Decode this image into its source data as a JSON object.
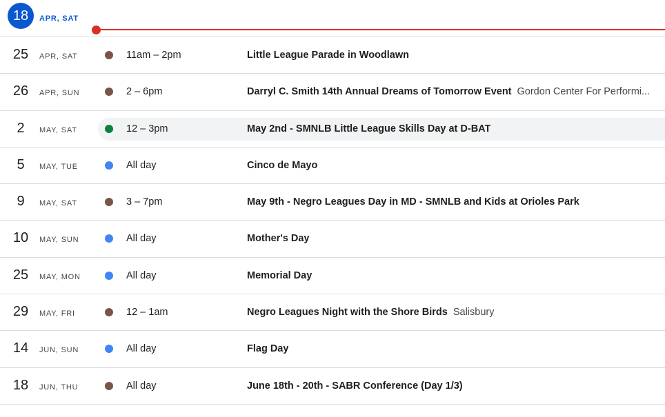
{
  "today": {
    "day": "18",
    "label": "APR, SAT"
  },
  "colors": {
    "brown": "#795548",
    "green": "#0b8043",
    "blue": "#4285f4",
    "today": "#0b57d0",
    "now_line": "#d93025"
  },
  "events": [
    {
      "day": "25",
      "label": "APR, SAT",
      "color": "#795548",
      "time": "11am – 2pm",
      "title": "Little League Parade in Woodlawn",
      "location": ""
    },
    {
      "day": "26",
      "label": "APR, SUN",
      "color": "#795548",
      "time": "2 – 6pm",
      "title": "Darryl C. Smith 14th Annual Dreams of Tomorrow Event",
      "location": "Gordon Center For Performi..."
    },
    {
      "day": "2",
      "label": "MAY, SAT",
      "color": "#0b8043",
      "time": "12 – 3pm",
      "title": "May 2nd - SMNLB Little League Skills Day at D-BAT",
      "location": "",
      "hover": true
    },
    {
      "day": "5",
      "label": "MAY, TUE",
      "color": "#4285f4",
      "time": "All day",
      "title": "Cinco de Mayo",
      "location": ""
    },
    {
      "day": "9",
      "label": "MAY, SAT",
      "color": "#795548",
      "time": "3 – 7pm",
      "title": "May 9th - Negro Leagues Day in MD - SMNLB and Kids at Orioles Park",
      "location": ""
    },
    {
      "day": "10",
      "label": "MAY, SUN",
      "color": "#4285f4",
      "time": "All day",
      "title": "Mother's Day",
      "location": ""
    },
    {
      "day": "25",
      "label": "MAY, MON",
      "color": "#4285f4",
      "time": "All day",
      "title": "Memorial Day",
      "location": ""
    },
    {
      "day": "29",
      "label": "MAY, FRI",
      "color": "#795548",
      "time": "12 – 1am",
      "title": "Negro Leagues Night with the Shore Birds",
      "location": "Salisbury"
    },
    {
      "day": "14",
      "label": "JUN, SUN",
      "color": "#4285f4",
      "time": "All day",
      "title": "Flag Day",
      "location": ""
    },
    {
      "day": "18",
      "label": "JUN, THU",
      "color": "#795548",
      "time": "All day",
      "title": "June 18th - 20th - SABR Conference (Day 1/3)",
      "location": ""
    }
  ]
}
